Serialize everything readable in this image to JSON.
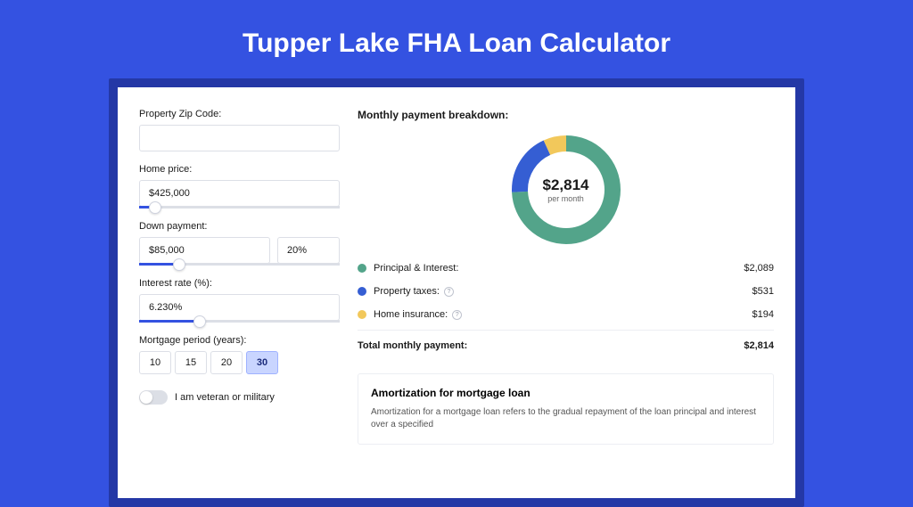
{
  "title": "Tupper Lake FHA Loan Calculator",
  "colors": {
    "page_bg": "#3452e1",
    "outer_card_bg": "#2438a6",
    "inner_card_bg": "#ffffff",
    "accent": "#3452e1",
    "text_primary": "#1a1a1a",
    "text_muted": "#666666",
    "border": "#dcdfe6"
  },
  "form": {
    "zip_label": "Property Zip Code:",
    "zip_value": "",
    "home_price_label": "Home price:",
    "home_price_value": "$425,000",
    "home_price_slider_pct": 8,
    "down_payment_label": "Down payment:",
    "down_payment_value": "$85,000",
    "down_payment_pct": "20%",
    "down_payment_slider_pct": 20,
    "interest_label": "Interest rate (%):",
    "interest_value": "6.230%",
    "interest_slider_pct": 30,
    "mortgage_period_label": "Mortgage period (years):",
    "periods": [
      "10",
      "15",
      "20",
      "30"
    ],
    "period_selected": "30",
    "veteran_label": "I am veteran or military",
    "veteran_on": false
  },
  "breakdown": {
    "title": "Monthly payment breakdown:",
    "donut": {
      "amount": "$2,814",
      "sub": "per month",
      "segments": [
        {
          "name": "principal_interest",
          "value": 2089,
          "pct": 74.2,
          "color": "#53a48a"
        },
        {
          "name": "property_taxes",
          "value": 531,
          "pct": 18.9,
          "color": "#355ed3"
        },
        {
          "name": "home_insurance",
          "value": 194,
          "pct": 6.9,
          "color": "#f2c85b"
        }
      ],
      "ring_width": 18
    },
    "legend": [
      {
        "label": "Principal & Interest:",
        "value": "$2,089",
        "color": "#53a48a",
        "info": false
      },
      {
        "label": "Property taxes:",
        "value": "$531",
        "color": "#355ed3",
        "info": true
      },
      {
        "label": "Home insurance:",
        "value": "$194",
        "color": "#f2c85b",
        "info": true
      }
    ],
    "total_label": "Total monthly payment:",
    "total_value": "$2,814"
  },
  "amortization": {
    "title": "Amortization for mortgage loan",
    "text": "Amortization for a mortgage loan refers to the gradual repayment of the loan principal and interest over a specified"
  }
}
